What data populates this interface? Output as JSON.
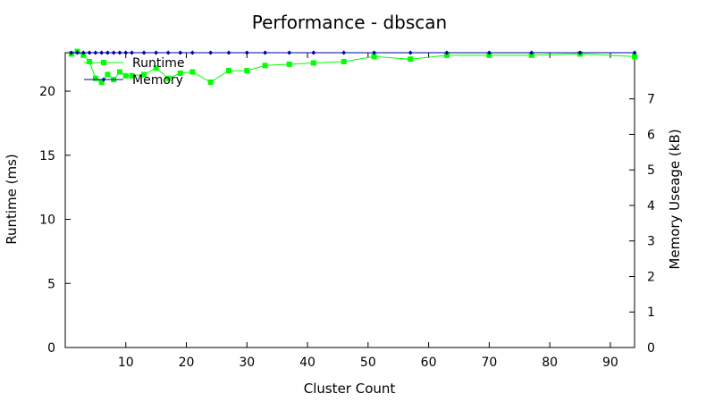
{
  "chart_data": {
    "type": "line",
    "title": "Performance - dbscan",
    "xlabel": "Cluster Count",
    "ylabel": "Runtime (ms)",
    "y2label": "Memory Useage (kB)",
    "xlim": [
      0,
      94
    ],
    "ylim": [
      0,
      23
    ],
    "y2lim": [
      0,
      8.3
    ],
    "xticks": [
      "10",
      "20",
      "30",
      "40",
      "50",
      "60",
      "70",
      "80",
      "90"
    ],
    "yticks": [
      "0",
      "5",
      "10",
      "15",
      "20"
    ],
    "y2ticks": [
      "0",
      "1",
      "2",
      "3",
      "4",
      "5",
      "6",
      "7"
    ],
    "grid": false,
    "legend_position": "top-left",
    "series": [
      {
        "name": "Runtime",
        "axis": "left",
        "color": "#00ff00",
        "marker": "square",
        "x": [
          1,
          2,
          3,
          4,
          5,
          6,
          7,
          8,
          9,
          10,
          11,
          13,
          15,
          17,
          19,
          21,
          24,
          27,
          30,
          33,
          37,
          41,
          46,
          51,
          57,
          63,
          70,
          77,
          85,
          94
        ],
        "y": [
          22.9,
          23.1,
          22.8,
          22.3,
          21.0,
          20.7,
          21.3,
          20.9,
          21.5,
          21.2,
          21.2,
          21.3,
          21.8,
          21.0,
          21.4,
          21.5,
          20.7,
          21.6,
          21.6,
          22.0,
          22.1,
          22.2,
          22.3,
          22.7,
          22.5,
          22.8,
          22.8,
          22.8,
          22.9,
          22.7
        ]
      },
      {
        "name": "Memory",
        "axis": "right",
        "color": "#0000a0",
        "marker": "diamond",
        "x": [
          1,
          2,
          3,
          4,
          5,
          6,
          7,
          8,
          9,
          10,
          11,
          13,
          15,
          17,
          19,
          21,
          24,
          27,
          30,
          33,
          37,
          41,
          46,
          51,
          57,
          63,
          70,
          77,
          85,
          94
        ],
        "y": [
          8.3,
          8.3,
          8.3,
          8.3,
          8.3,
          8.3,
          8.3,
          8.3,
          8.3,
          8.3,
          8.3,
          8.3,
          8.3,
          8.3,
          8.3,
          8.3,
          8.3,
          8.3,
          8.3,
          8.3,
          8.3,
          8.3,
          8.3,
          8.3,
          8.3,
          8.3,
          8.3,
          8.3,
          8.3,
          8.3
        ]
      }
    ]
  }
}
